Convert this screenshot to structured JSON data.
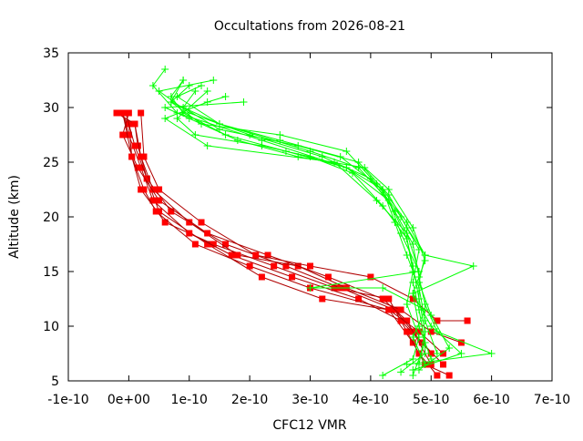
{
  "chart_data": {
    "type": "line",
    "title": "Occultations from 2026-08-21",
    "xlabel": "CFC12 VMR",
    "ylabel": "Altitude (km)",
    "xlim": [
      -1e-10,
      7e-10
    ],
    "ylim": [
      5,
      35
    ],
    "x_ticks": [
      -1e-10,
      0,
      1e-10,
      2e-10,
      3e-10,
      4e-10,
      5e-10,
      6e-10,
      7e-10
    ],
    "x_tick_labels": [
      "-1e-10",
      "0e+00",
      "1e-10",
      "2e-10",
      "3e-10",
      "4e-10",
      "5e-10",
      "6e-10",
      "7e-10"
    ],
    "y_ticks": [
      5,
      10,
      15,
      20,
      25,
      30,
      35
    ],
    "y_tick_labels": [
      "5",
      "10",
      "15",
      "20",
      "25",
      "30",
      "35"
    ],
    "grid": false,
    "legend": "none",
    "colors": {
      "red": "#ff0000",
      "green": "#00ff00",
      "red_line": "#b00000"
    },
    "series": [
      {
        "color": "red",
        "marker": "square",
        "points": [
          [
            5.3e-10,
            5.5
          ],
          [
            4.9e-10,
            6.5
          ],
          [
            4.7e-10,
            8.5
          ],
          [
            4.3e-10,
            11.5
          ],
          [
            3.2e-10,
            12.5
          ],
          [
            2.2e-10,
            14.5
          ],
          [
            1.3e-10,
            17.5
          ],
          [
            5e-11,
            20.5
          ],
          [
            3e-11,
            23.5
          ],
          [
            1.5e-11,
            26.5
          ],
          [
            1e-11,
            28.5
          ],
          [
            -2e-11,
            29.5
          ]
        ]
      },
      {
        "color": "red",
        "marker": "square",
        "points": [
          [
            5.1e-10,
            5.5
          ],
          [
            4.8e-10,
            7.5
          ],
          [
            4.6e-10,
            9.5
          ],
          [
            4.3e-10,
            12.5
          ],
          [
            3.4e-10,
            13.5
          ],
          [
            2.4e-10,
            15.5
          ],
          [
            1.4e-10,
            17.5
          ],
          [
            6e-11,
            19.5
          ],
          [
            2e-11,
            22.5
          ],
          [
            5e-12,
            25.5
          ],
          [
            0.0,
            28.5
          ],
          [
            -1.5e-11,
            29.5
          ]
        ]
      },
      {
        "color": "red",
        "marker": "square",
        "points": [
          [
            5.2e-10,
            6.5
          ],
          [
            4.85e-10,
            8.5
          ],
          [
            4.5e-10,
            10.5
          ],
          [
            3.8e-10,
            12.5
          ],
          [
            2.7e-10,
            14.5
          ],
          [
            1.7e-10,
            16.5
          ],
          [
            1e-10,
            18.5
          ],
          [
            4e-11,
            21.5
          ],
          [
            2e-11,
            24.5
          ],
          [
            0.0,
            27.5
          ],
          [
            -1e-11,
            29.5
          ]
        ]
      },
      {
        "color": "red",
        "marker": "square",
        "points": [
          [
            5e-10,
            7.5
          ],
          [
            4.7e-10,
            9.5
          ],
          [
            4.4e-10,
            11.5
          ],
          [
            3.5e-10,
            13.5
          ],
          [
            2.6e-10,
            15.5
          ],
          [
            1.6e-10,
            17.5
          ],
          [
            7e-11,
            20.5
          ],
          [
            3e-11,
            23.5
          ],
          [
            1e-11,
            26.5
          ],
          [
            -5e-12,
            29.5
          ]
        ]
      },
      {
        "color": "red",
        "marker": "square",
        "points": [
          [
            5.5e-10,
            8.5
          ],
          [
            5e-10,
            9.5
          ],
          [
            4.5e-10,
            11.5
          ],
          [
            3.6e-10,
            13.5
          ],
          [
            2.8e-10,
            15.5
          ],
          [
            1.8e-10,
            16.5
          ],
          [
            1e-10,
            19.5
          ],
          [
            4e-11,
            22.5
          ],
          [
            2e-11,
            25.5
          ],
          [
            1e-11,
            28.5
          ],
          [
            -2e-11,
            29.5
          ]
        ]
      },
      {
        "color": "red",
        "marker": "square",
        "points": [
          [
            5e-10,
            6.5
          ],
          [
            4.6e-10,
            10.5
          ],
          [
            4.2e-10,
            12.5
          ],
          [
            3.3e-10,
            14.5
          ],
          [
            2.3e-10,
            16.5
          ],
          [
            1.3e-10,
            18.5
          ],
          [
            5e-11,
            21.5
          ],
          [
            1.5e-11,
            24.5
          ],
          [
            -1e-11,
            27.5
          ],
          [
            0.0,
            29.5
          ]
        ]
      },
      {
        "color": "red",
        "marker": "square",
        "points": [
          [
            5.2e-10,
            7.5
          ],
          [
            4.8e-10,
            9.5
          ],
          [
            4.3e-10,
            11.5
          ],
          [
            3e-10,
            13.5
          ],
          [
            2e-10,
            15.5
          ],
          [
            1.1e-10,
            17.5
          ],
          [
            4.5e-11,
            20.5
          ],
          [
            2.5e-11,
            22.5
          ],
          [
            5e-12,
            25.5
          ],
          [
            -1e-11,
            29.5
          ]
        ]
      },
      {
        "color": "red",
        "marker": "square",
        "points": [
          [
            5.6e-10,
            10.5
          ],
          [
            5.1e-10,
            10.5
          ],
          [
            4.7e-10,
            12.5
          ],
          [
            4e-10,
            14.5
          ],
          [
            3e-10,
            15.5
          ],
          [
            2.1e-10,
            16.5
          ],
          [
            1.2e-10,
            19.5
          ],
          [
            5e-11,
            22.5
          ],
          [
            2.5e-11,
            25.5
          ],
          [
            2e-11,
            29.5
          ]
        ]
      },
      {
        "color": "green",
        "marker": "plus",
        "points": [
          [
            4.2e-10,
            5.5
          ],
          [
            4.7e-10,
            7.0
          ],
          [
            4.8e-10,
            9.0
          ],
          [
            4.6e-10,
            12.0
          ],
          [
            4.7e-10,
            15.0
          ],
          [
            4.6e-10,
            18.0
          ],
          [
            4.3e-10,
            21.5
          ],
          [
            3.6e-10,
            24.5
          ],
          [
            2.2e-10,
            27.0
          ],
          [
            8e-11,
            29.5
          ],
          [
            4e-11,
            32.0
          ],
          [
            6e-11,
            33.5
          ]
        ]
      },
      {
        "color": "green",
        "marker": "plus",
        "points": [
          [
            4.5e-10,
            5.8
          ],
          [
            4.9e-10,
            7.5
          ],
          [
            4.9e-10,
            9.5
          ],
          [
            4.8e-10,
            12.5
          ],
          [
            4.8e-10,
            15.0
          ],
          [
            4.5e-10,
            18.5
          ],
          [
            4.3e-10,
            21.5
          ],
          [
            3.8e-10,
            24.5
          ],
          [
            3e-10,
            26.0
          ],
          [
            1.5e-10,
            28.5
          ],
          [
            7e-11,
            30.5
          ],
          [
            9e-11,
            32.5
          ]
        ]
      },
      {
        "color": "green",
        "marker": "plus",
        "points": [
          [
            4.7e-10,
            6.0
          ],
          [
            5.5e-10,
            7.5
          ],
          [
            5e-10,
            10.0
          ],
          [
            4.7e-10,
            13.0
          ],
          [
            5.7e-10,
            15.5
          ],
          [
            4.9e-10,
            16.5
          ],
          [
            4.6e-10,
            19.5
          ],
          [
            4.2e-10,
            22.5
          ],
          [
            3.5e-10,
            25.5
          ],
          [
            2.5e-10,
            27.0
          ],
          [
            1.5e-10,
            28.5
          ],
          [
            8e-11,
            31.0
          ],
          [
            1.2e-10,
            32.0
          ]
        ]
      },
      {
        "color": "green",
        "marker": "plus",
        "points": [
          [
            4.6e-10,
            6.5
          ],
          [
            6e-10,
            7.5
          ],
          [
            5.1e-10,
            9.5
          ],
          [
            4.9e-10,
            12.0
          ],
          [
            4.8e-10,
            14.5
          ],
          [
            4.7e-10,
            17.5
          ],
          [
            4.4e-10,
            20.5
          ],
          [
            4e-10,
            23.5
          ],
          [
            3.2e-10,
            25.5
          ],
          [
            2e-10,
            27.5
          ],
          [
            1e-10,
            29.5
          ],
          [
            5e-11,
            31.5
          ],
          [
            1.4e-10,
            32.5
          ]
        ]
      },
      {
        "color": "green",
        "marker": "plus",
        "points": [
          [
            4.8e-10,
            6.0
          ],
          [
            5.3e-10,
            8.0
          ],
          [
            5e-10,
            11.0
          ],
          [
            4.8e-10,
            14.0
          ],
          [
            4.9e-10,
            16.5
          ],
          [
            4.6e-10,
            19.0
          ],
          [
            4.3e-10,
            22.0
          ],
          [
            3.8e-10,
            25.0
          ],
          [
            2.8e-10,
            26.5
          ],
          [
            1.5e-10,
            28.0
          ],
          [
            9e-11,
            30.0
          ],
          [
            1.1e-10,
            31.5
          ]
        ]
      },
      {
        "color": "green",
        "marker": "plus",
        "points": [
          [
            4.9e-10,
            6.5
          ],
          [
            4.7e-10,
            9.0
          ],
          [
            4.9e-10,
            11.5
          ],
          [
            4.2e-10,
            13.5
          ],
          [
            3e-10,
            13.5
          ],
          [
            4.8e-10,
            15.0
          ],
          [
            4.6e-10,
            18.5
          ],
          [
            4.1e-10,
            21.5
          ],
          [
            3.4e-10,
            25.0
          ],
          [
            1.3e-10,
            26.5
          ],
          [
            6e-11,
            29.0
          ],
          [
            1.3e-10,
            30.5
          ],
          [
            1.6e-10,
            31.0
          ]
        ]
      },
      {
        "color": "green",
        "marker": "plus",
        "points": [
          [
            4.7e-10,
            5.5
          ],
          [
            4.9e-10,
            8.5
          ],
          [
            4.8e-10,
            11.5
          ],
          [
            4.7e-10,
            14.0
          ],
          [
            4.8e-10,
            17.0
          ],
          [
            4.5e-10,
            20.0
          ],
          [
            4.1e-10,
            23.0
          ],
          [
            3.6e-10,
            26.0
          ],
          [
            2.5e-10,
            27.5
          ],
          [
            1.2e-10,
            28.5
          ],
          [
            7e-11,
            30.5
          ],
          [
            1e-10,
            32.0
          ]
        ]
      },
      {
        "color": "green",
        "marker": "plus",
        "points": [
          [
            5e-10,
            7.0
          ],
          [
            4.8e-10,
            10.0
          ],
          [
            4.7e-10,
            13.0
          ],
          [
            4.9e-10,
            16.0
          ],
          [
            4.7e-10,
            19.0
          ],
          [
            4.3e-10,
            22.5
          ],
          [
            3.9e-10,
            24.5
          ],
          [
            2.8e-10,
            25.5
          ],
          [
            1.8e-10,
            27.0
          ],
          [
            1e-10,
            29.0
          ],
          [
            6e-11,
            30.0
          ],
          [
            1.9e-10,
            30.5
          ]
        ]
      },
      {
        "color": "green",
        "marker": "plus",
        "points": [
          [
            4.8e-10,
            6.5
          ],
          [
            4.9e-10,
            9.5
          ],
          [
            4.8e-10,
            12.5
          ],
          [
            4.7e-10,
            15.5
          ],
          [
            4.6e-10,
            18.0
          ],
          [
            4.2e-10,
            21.0
          ],
          [
            3.7e-10,
            24.0
          ],
          [
            3e-10,
            25.5
          ],
          [
            2.2e-10,
            26.5
          ],
          [
            1.1e-10,
            27.5
          ],
          [
            8e-11,
            29.0
          ],
          [
            1.3e-10,
            31.5
          ]
        ]
      },
      {
        "color": "green",
        "marker": "plus",
        "points": [
          [
            5.1e-10,
            7.5
          ],
          [
            4.9e-10,
            10.5
          ],
          [
            4.8e-10,
            13.5
          ],
          [
            4.6e-10,
            16.5
          ],
          [
            4.4e-10,
            19.5
          ],
          [
            4.2e-10,
            22.5
          ],
          [
            3.6e-10,
            24.5
          ],
          [
            2.6e-10,
            26.0
          ],
          [
            1.6e-10,
            27.5
          ],
          [
            9e-11,
            29.5
          ],
          [
            7e-11,
            31.0
          ],
          [
            9e-11,
            32.5
          ]
        ]
      }
    ]
  }
}
